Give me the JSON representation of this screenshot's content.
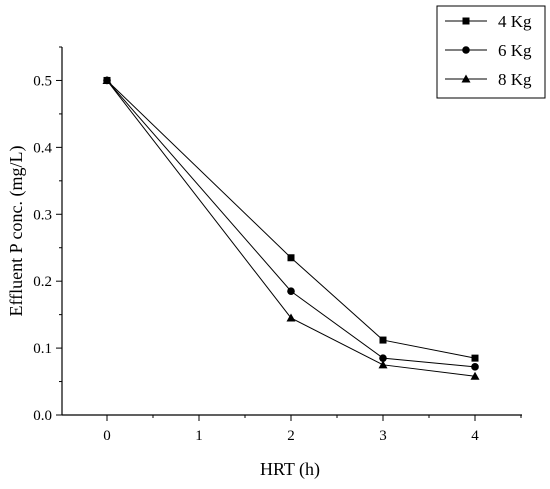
{
  "chart_data": {
    "type": "line",
    "title": "",
    "xlabel": "HRT (h)",
    "ylabel": "Effluent P conc. (mg/L)",
    "x": [
      0,
      2,
      3,
      4
    ],
    "x_tick_labels": [
      "0",
      "1",
      "2",
      "3",
      "4"
    ],
    "y_tick_labels": [
      "0.0",
      "0.1",
      "0.2",
      "0.3",
      "0.4",
      "0.5"
    ],
    "ylim": [
      0,
      0.55
    ],
    "grid": false,
    "legend_position": "top-right",
    "series": [
      {
        "name": "4 Kg",
        "marker": "square",
        "values": [
          0.5,
          0.235,
          0.112,
          0.085
        ]
      },
      {
        "name": "6 Kg",
        "marker": "circle",
        "values": [
          0.5,
          0.185,
          0.085,
          0.072
        ]
      },
      {
        "name": "8 Kg",
        "marker": "triangle",
        "values": [
          0.5,
          0.145,
          0.075,
          0.058
        ]
      }
    ]
  }
}
